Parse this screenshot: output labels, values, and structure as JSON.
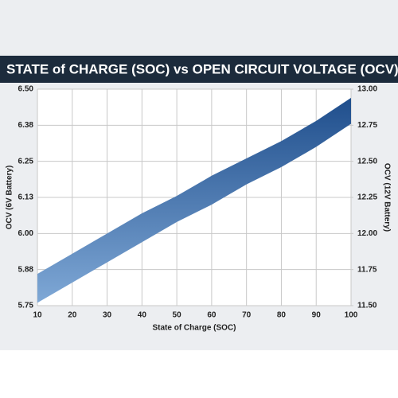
{
  "chart_data": {
    "type": "band",
    "title": "STATE of CHARGE (SOC) vs OPEN CIRCUIT VOLTAGE (OCV)",
    "x_label": "State of Charge (SOC)",
    "y_label": "OCV (6V Battery)",
    "y2_label": "OCV (12V Battery)",
    "x": [
      10,
      20,
      30,
      40,
      50,
      60,
      70,
      80,
      90,
      100
    ],
    "series": [
      {
        "name": "upper",
        "color": "#1f4e8c",
        "values": [
          5.86,
          5.93,
          6.0,
          6.07,
          6.13,
          6.2,
          6.26,
          6.32,
          6.39,
          6.47
        ]
      },
      {
        "name": "lower",
        "color": "#7fa8d6",
        "values": [
          5.76,
          5.83,
          5.9,
          5.97,
          6.04,
          6.1,
          6.17,
          6.23,
          6.3,
          6.38
        ]
      }
    ],
    "xlim": [
      10,
      100
    ],
    "xticks": [
      10,
      20,
      30,
      40,
      50,
      60,
      70,
      80,
      90,
      100
    ],
    "ylim": [
      5.75,
      6.5
    ],
    "yticks": [
      5.75,
      {
        "value": 5.875,
        "label": "5.88"
      },
      {
        "value": 6,
        "label": "6.00"
      },
      {
        "value": 6.125,
        "label": "6.13"
      },
      6.25,
      {
        "value": 6.375,
        "label": "6.38"
      },
      {
        "value": 6.5,
        "label": "6.50"
      }
    ],
    "y2lim": [
      11.5,
      13
    ],
    "y2ticks": [
      {
        "value": 11.5,
        "label": "11.50"
      },
      11.75,
      {
        "value": 12,
        "label": "12.00"
      },
      12.25,
      {
        "value": 12.5,
        "label": "12.50"
      },
      12.75,
      {
        "value": 13,
        "label": "13.00"
      }
    ],
    "grid": true
  }
}
